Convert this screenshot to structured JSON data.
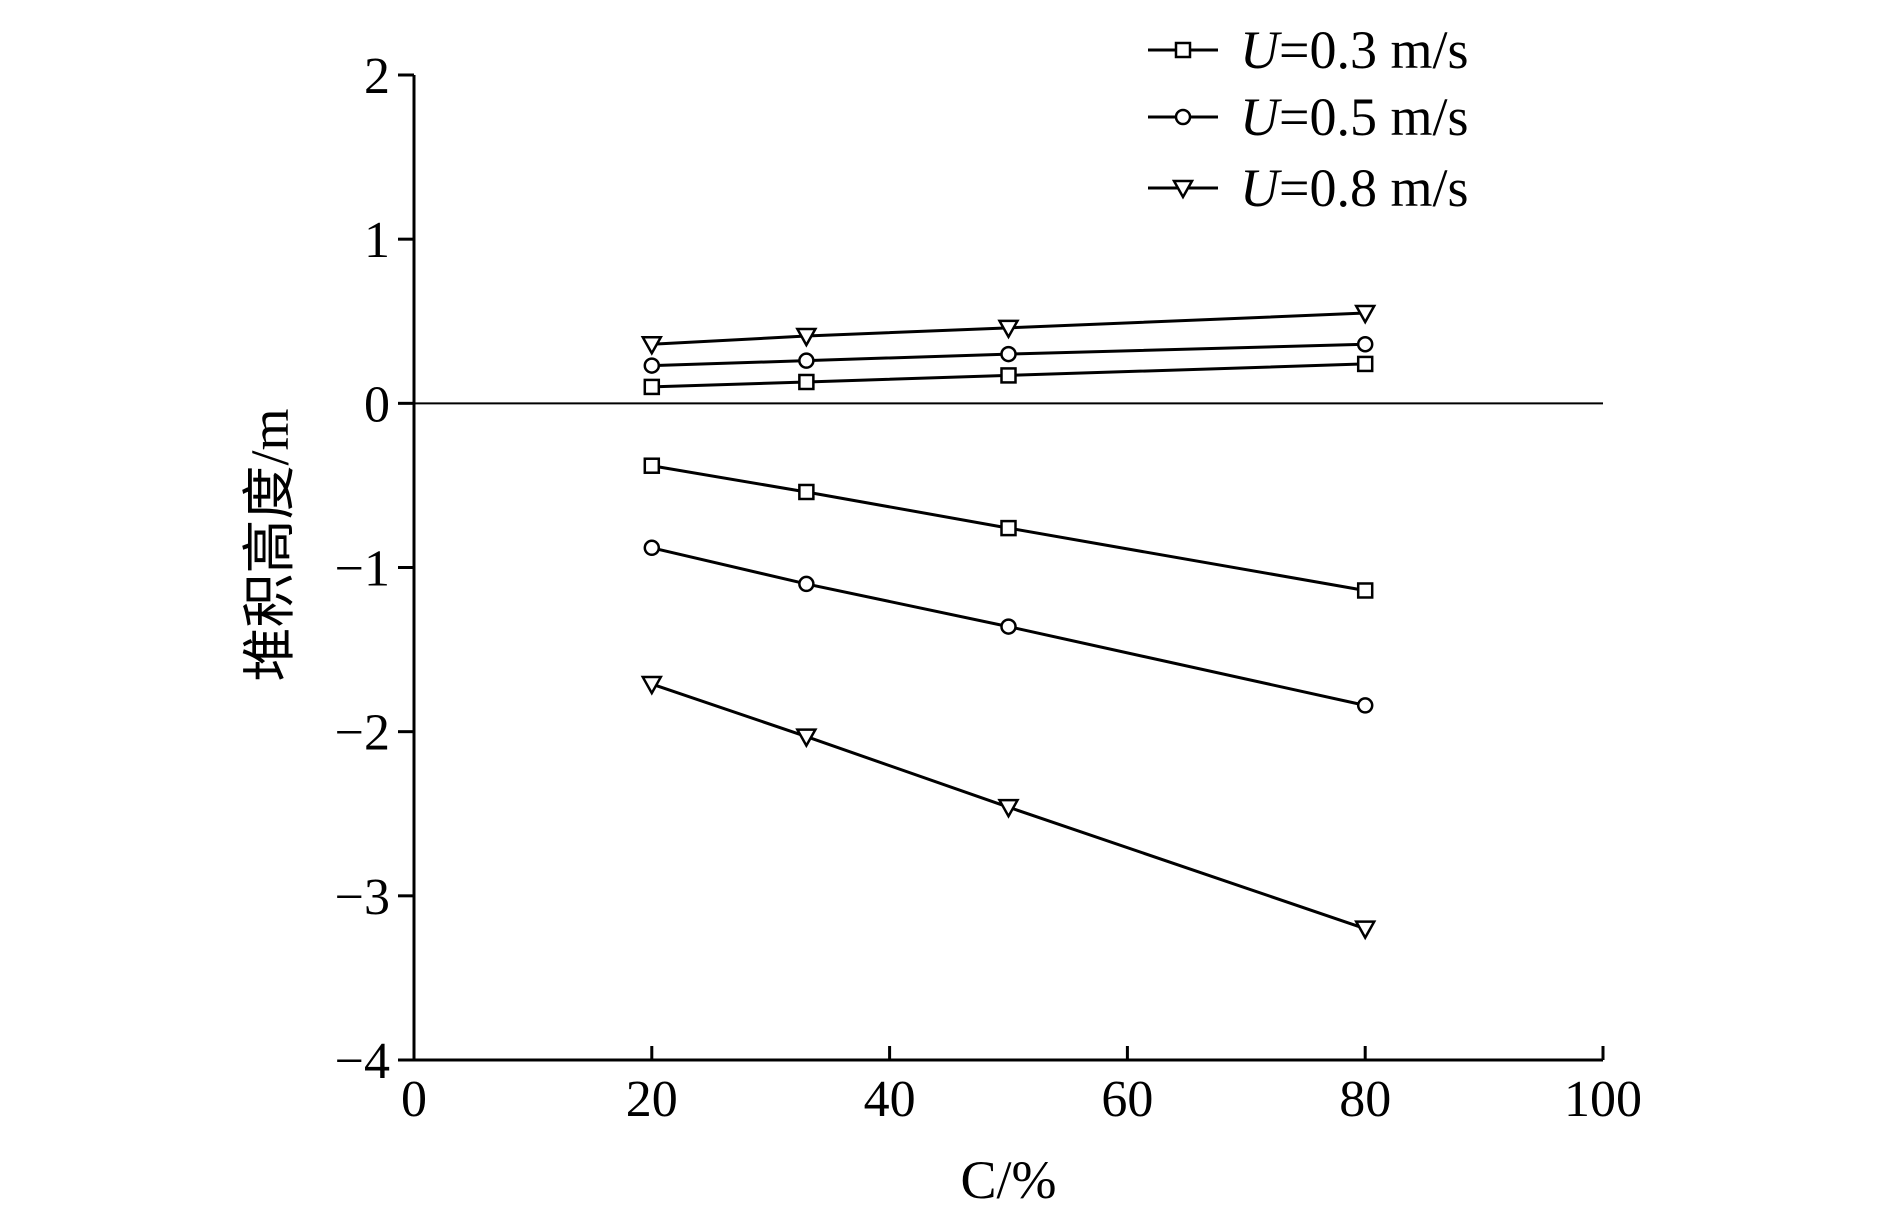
{
  "chart_data": {
    "type": "line",
    "xlabel": "C/%",
    "ylabel": "堆积高度/m",
    "xlim": [
      0,
      100
    ],
    "ylim": [
      -4,
      2
    ],
    "xticks": [
      0,
      20,
      40,
      60,
      80,
      100
    ],
    "yticks": [
      2,
      1,
      0,
      -1,
      -2,
      -3,
      -4
    ],
    "xtick_labels": [
      "0",
      "20",
      "40",
      "60",
      "80",
      "100"
    ],
    "ytick_labels": [
      "2",
      "1",
      "0",
      "−1",
      "−2",
      "−3",
      "−4"
    ],
    "zero_line": true,
    "grid": false,
    "legend_position": "top-right",
    "legend": [
      {
        "prefix": "U",
        "label": "=0.3 m/s",
        "marker": "square"
      },
      {
        "prefix": "U",
        "label": "=0.5 m/s",
        "marker": "circle"
      },
      {
        "prefix": "U",
        "label": "=0.8 m/s",
        "marker": "triangle-down"
      }
    ],
    "x": [
      20,
      33,
      50,
      80
    ],
    "series": [
      {
        "name": "U=0.3 m/s",
        "marker": "square",
        "values": [
          0.1,
          0.13,
          0.17,
          0.24
        ]
      },
      {
        "name": "U=0.5 m/s",
        "marker": "circle",
        "values": [
          0.23,
          0.26,
          0.3,
          0.36
        ]
      },
      {
        "name": "U=0.8 m/s",
        "marker": "triangle-down",
        "values": [
          0.36,
          0.41,
          0.46,
          0.55
        ]
      },
      {
        "name": "U=0.3 m/s",
        "marker": "square",
        "values": [
          -0.38,
          -0.54,
          -0.76,
          -1.14
        ]
      },
      {
        "name": "U=0.5 m/s",
        "marker": "circle",
        "values": [
          -0.88,
          -1.1,
          -1.36,
          -1.84
        ]
      },
      {
        "name": "U=0.8 m/s",
        "marker": "triangle-down",
        "values": [
          -1.71,
          -2.03,
          -2.46,
          -3.2
        ]
      }
    ]
  }
}
